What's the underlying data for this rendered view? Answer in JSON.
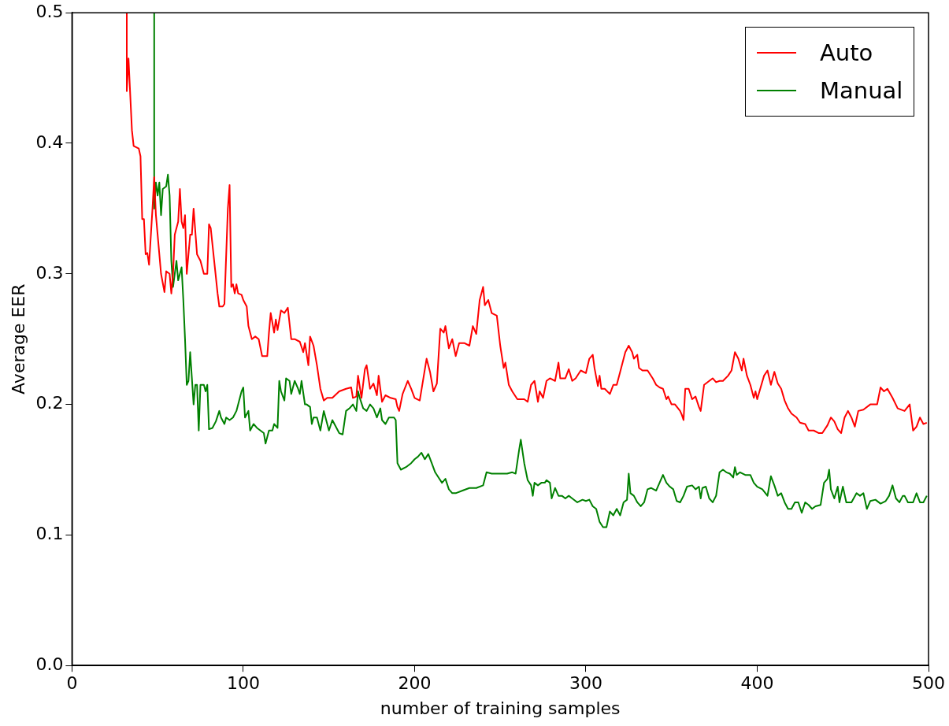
{
  "chart_data": {
    "type": "line",
    "xlabel": "number of training samples",
    "ylabel": "Average EER",
    "xlim": [
      0,
      500
    ],
    "xticks": [
      0,
      100,
      200,
      300,
      400,
      500
    ],
    "ylim": [
      0,
      0.5
    ],
    "yticks": [
      {
        "value": 0,
        "label": "0.0"
      },
      0.1,
      0.2,
      0.3,
      0.4,
      0.5
    ],
    "grid": false,
    "legend": "top right",
    "marker": "none",
    "line_style": "solid",
    "series": [
      {
        "name": "Auto",
        "color": "#ff0000",
        "x": [
          32,
          32,
          33,
          35,
          36,
          39,
          40,
          41,
          42,
          43,
          44,
          45,
          47,
          48,
          49,
          50,
          52,
          54,
          55,
          57,
          58,
          59,
          60,
          62,
          63,
          64,
          65,
          66,
          67,
          69,
          70,
          71,
          73,
          75,
          77,
          79,
          80,
          81,
          83,
          85,
          86,
          88,
          89,
          91,
          92,
          93,
          94,
          95,
          96,
          97,
          99,
          100,
          102,
          103,
          105,
          107,
          109,
          111,
          114,
          115,
          116,
          118,
          119,
          120,
          122,
          124,
          126,
          128,
          130,
          133,
          135,
          136,
          138,
          139,
          141,
          143,
          145,
          147,
          149,
          152,
          156,
          160,
          163,
          164,
          166,
          167,
          169,
          171,
          172,
          174,
          176,
          178,
          179,
          181,
          183,
          186,
          189,
          190,
          191,
          193,
          196,
          198,
          200,
          203,
          207,
          209,
          211,
          213,
          215,
          217,
          218,
          220,
          222,
          224,
          226,
          229,
          232,
          234,
          236,
          238,
          240,
          241,
          243,
          245,
          248,
          250,
          252,
          253,
          255,
          257,
          260,
          264,
          266,
          268,
          270,
          272,
          273,
          275,
          277,
          279,
          282,
          284,
          285,
          288,
          290,
          292,
          294,
          297,
          300,
          302,
          304,
          305,
          307,
          308,
          309,
          311,
          314,
          316,
          318,
          320,
          323,
          325,
          327,
          328,
          330,
          331,
          333,
          336,
          339,
          341,
          343,
          345,
          347,
          348,
          350,
          352,
          355,
          356,
          357,
          358,
          360,
          362,
          364,
          366,
          367,
          369,
          372,
          374,
          376,
          378,
          380,
          383,
          385,
          387,
          389,
          391,
          392,
          394,
          396,
          398,
          399,
          400,
          402,
          404,
          406,
          408,
          410,
          412,
          414,
          416,
          418,
          420,
          423,
          425,
          428,
          430,
          433,
          436,
          438,
          441,
          443,
          445,
          447,
          449,
          451,
          453,
          455,
          457,
          459,
          462,
          466,
          470,
          472,
          474,
          476,
          479,
          482,
          486,
          489,
          491,
          493,
          495,
          497,
          499
        ],
        "values": [
          0.5,
          0.44,
          0.465,
          0.41,
          0.398,
          0.396,
          0.39,
          0.342,
          0.342,
          0.315,
          0.316,
          0.307,
          0.35,
          0.374,
          0.345,
          0.33,
          0.3,
          0.286,
          0.302,
          0.3,
          0.285,
          0.3,
          0.33,
          0.34,
          0.365,
          0.34,
          0.335,
          0.345,
          0.3,
          0.33,
          0.33,
          0.35,
          0.315,
          0.31,
          0.3,
          0.3,
          0.338,
          0.335,
          0.31,
          0.285,
          0.275,
          0.275,
          0.277,
          0.35,
          0.368,
          0.29,
          0.292,
          0.285,
          0.292,
          0.285,
          0.284,
          0.28,
          0.275,
          0.26,
          0.25,
          0.252,
          0.25,
          0.237,
          0.237,
          0.255,
          0.27,
          0.255,
          0.265,
          0.257,
          0.272,
          0.27,
          0.274,
          0.25,
          0.25,
          0.248,
          0.24,
          0.247,
          0.23,
          0.252,
          0.245,
          0.23,
          0.212,
          0.203,
          0.205,
          0.205,
          0.21,
          0.212,
          0.213,
          0.205,
          0.206,
          0.222,
          0.205,
          0.227,
          0.23,
          0.212,
          0.216,
          0.207,
          0.222,
          0.202,
          0.207,
          0.205,
          0.204,
          0.198,
          0.195,
          0.208,
          0.218,
          0.212,
          0.205,
          0.203,
          0.235,
          0.225,
          0.21,
          0.216,
          0.258,
          0.255,
          0.26,
          0.243,
          0.25,
          0.237,
          0.247,
          0.247,
          0.245,
          0.26,
          0.254,
          0.28,
          0.29,
          0.276,
          0.28,
          0.27,
          0.268,
          0.245,
          0.228,
          0.232,
          0.215,
          0.21,
          0.204,
          0.204,
          0.202,
          0.215,
          0.218,
          0.202,
          0.21,
          0.205,
          0.218,
          0.22,
          0.218,
          0.232,
          0.22,
          0.22,
          0.227,
          0.218,
          0.22,
          0.226,
          0.224,
          0.235,
          0.238,
          0.228,
          0.214,
          0.222,
          0.212,
          0.212,
          0.208,
          0.215,
          0.215,
          0.225,
          0.24,
          0.245,
          0.24,
          0.235,
          0.238,
          0.228,
          0.226,
          0.226,
          0.22,
          0.215,
          0.213,
          0.212,
          0.204,
          0.206,
          0.2,
          0.2,
          0.195,
          0.192,
          0.188,
          0.212,
          0.212,
          0.204,
          0.206,
          0.198,
          0.195,
          0.215,
          0.218,
          0.22,
          0.217,
          0.218,
          0.218,
          0.222,
          0.226,
          0.24,
          0.235,
          0.226,
          0.235,
          0.222,
          0.215,
          0.205,
          0.21,
          0.204,
          0.213,
          0.222,
          0.226,
          0.215,
          0.225,
          0.216,
          0.212,
          0.203,
          0.197,
          0.193,
          0.19,
          0.186,
          0.185,
          0.18,
          0.18,
          0.178,
          0.178,
          0.184,
          0.19,
          0.187,
          0.181,
          0.178,
          0.19,
          0.195,
          0.19,
          0.183,
          0.195,
          0.196,
          0.2,
          0.2,
          0.213,
          0.21,
          0.212,
          0.205,
          0.197,
          0.195,
          0.2,
          0.18,
          0.183,
          0.19,
          0.185,
          0.186
        ]
      },
      {
        "name": "Manual",
        "color": "#008000",
        "x": [
          48,
          48,
          49,
          50,
          51,
          52,
          53,
          55,
          56,
          57,
          58,
          59,
          60,
          61,
          62,
          63,
          64,
          65,
          66,
          67,
          68,
          69,
          70,
          71,
          72,
          73,
          74,
          75,
          77,
          78,
          79,
          80,
          82,
          84,
          86,
          87,
          89,
          90,
          92,
          94,
          96,
          99,
          100,
          101,
          103,
          104,
          106,
          108,
          110,
          112,
          113,
          115,
          117,
          118,
          120,
          121,
          122,
          124,
          125,
          127,
          128,
          130,
          132,
          133,
          134,
          136,
          137,
          139,
          140,
          141,
          143,
          145,
          147,
          148,
          150,
          152,
          154,
          156,
          158,
          160,
          162,
          164,
          166,
          167,
          168,
          170,
          172,
          174,
          176,
          178,
          180,
          181,
          183,
          185,
          186,
          188,
          189,
          190,
          192,
          195,
          198,
          200,
          202,
          204,
          206,
          208,
          210,
          212,
          214,
          216,
          218,
          220,
          222,
          224,
          228,
          232,
          236,
          240,
          242,
          245,
          250,
          254,
          257,
          259,
          261,
          262,
          264,
          266,
          268,
          269,
          270,
          272,
          274,
          276,
          277,
          279,
          280,
          282,
          284,
          286,
          288,
          290,
          292,
          295,
          298,
          300,
          302,
          304,
          306,
          308,
          310,
          312,
          314,
          316,
          318,
          320,
          322,
          324,
          325,
          326,
          328,
          330,
          332,
          334,
          336,
          338,
          341,
          343,
          345,
          347,
          349,
          351,
          353,
          355,
          357,
          359,
          362,
          364,
          366,
          367,
          368,
          370,
          372,
          374,
          376,
          378,
          380,
          382,
          384,
          386,
          387,
          388,
          390,
          393,
          396,
          398,
          400,
          403,
          406,
          408,
          410,
          412,
          414,
          416,
          418,
          420,
          422,
          424,
          426,
          428,
          430,
          432,
          434,
          437,
          439,
          441,
          442,
          443,
          445,
          447,
          448,
          450,
          452,
          455,
          458,
          460,
          462,
          464,
          466,
          469,
          472,
          475,
          477,
          479,
          481,
          483,
          485,
          486,
          488,
          491,
          493,
          495,
          497,
          499
        ],
        "values": [
          0.5,
          0.35,
          0.37,
          0.36,
          0.37,
          0.345,
          0.365,
          0.367,
          0.376,
          0.36,
          0.31,
          0.29,
          0.3,
          0.31,
          0.295,
          0.3,
          0.305,
          0.28,
          0.25,
          0.215,
          0.218,
          0.24,
          0.22,
          0.2,
          0.215,
          0.215,
          0.18,
          0.215,
          0.215,
          0.21,
          0.215,
          0.181,
          0.182,
          0.187,
          0.195,
          0.19,
          0.185,
          0.19,
          0.188,
          0.19,
          0.195,
          0.21,
          0.213,
          0.19,
          0.195,
          0.18,
          0.185,
          0.182,
          0.18,
          0.178,
          0.17,
          0.18,
          0.18,
          0.185,
          0.182,
          0.218,
          0.21,
          0.203,
          0.22,
          0.218,
          0.208,
          0.218,
          0.212,
          0.208,
          0.218,
          0.2,
          0.2,
          0.198,
          0.185,
          0.19,
          0.19,
          0.18,
          0.195,
          0.19,
          0.18,
          0.188,
          0.183,
          0.178,
          0.177,
          0.195,
          0.197,
          0.2,
          0.195,
          0.21,
          0.205,
          0.197,
          0.195,
          0.2,
          0.197,
          0.19,
          0.197,
          0.188,
          0.185,
          0.19,
          0.19,
          0.19,
          0.188,
          0.155,
          0.15,
          0.152,
          0.155,
          0.158,
          0.16,
          0.163,
          0.158,
          0.162,
          0.155,
          0.148,
          0.144,
          0.14,
          0.143,
          0.135,
          0.132,
          0.132,
          0.134,
          0.136,
          0.136,
          0.138,
          0.148,
          0.147,
          0.147,
          0.147,
          0.148,
          0.147,
          0.165,
          0.173,
          0.155,
          0.142,
          0.138,
          0.13,
          0.14,
          0.138,
          0.14,
          0.14,
          0.142,
          0.14,
          0.128,
          0.136,
          0.13,
          0.13,
          0.128,
          0.13,
          0.128,
          0.125,
          0.127,
          0.126,
          0.127,
          0.122,
          0.12,
          0.11,
          0.106,
          0.106,
          0.118,
          0.115,
          0.12,
          0.115,
          0.125,
          0.127,
          0.147,
          0.132,
          0.13,
          0.125,
          0.122,
          0.125,
          0.135,
          0.136,
          0.134,
          0.14,
          0.146,
          0.14,
          0.137,
          0.135,
          0.126,
          0.125,
          0.13,
          0.137,
          0.138,
          0.135,
          0.137,
          0.128,
          0.136,
          0.137,
          0.128,
          0.125,
          0.13,
          0.148,
          0.15,
          0.148,
          0.147,
          0.144,
          0.152,
          0.146,
          0.148,
          0.146,
          0.146,
          0.14,
          0.137,
          0.135,
          0.13,
          0.145,
          0.138,
          0.13,
          0.132,
          0.125,
          0.12,
          0.12,
          0.125,
          0.125,
          0.117,
          0.125,
          0.123,
          0.12,
          0.122,
          0.123,
          0.14,
          0.143,
          0.15,
          0.135,
          0.128,
          0.137,
          0.125,
          0.137,
          0.125,
          0.125,
          0.132,
          0.13,
          0.132,
          0.12,
          0.126,
          0.127,
          0.124,
          0.126,
          0.13,
          0.138,
          0.128,
          0.125,
          0.13,
          0.13,
          0.125,
          0.125,
          0.132,
          0.125,
          0.125,
          0.13
        ]
      }
    ]
  }
}
